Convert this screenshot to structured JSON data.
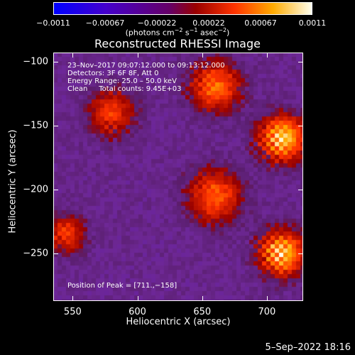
{
  "chart_data": {
    "type": "heatmap",
    "title": "Reconstructed RHESSI Image",
    "xlabel": "Heliocentric X (arcsec)",
    "ylabel": "Heliocentric Y (arcsec)",
    "xlim": [
      535,
      728
    ],
    "ylim": [
      -287,
      -93
    ],
    "x_ticks": [
      550,
      600,
      650,
      700
    ],
    "x_tick_labels": [
      "550",
      "600",
      "650",
      "700"
    ],
    "y_ticks": [
      -100,
      -150,
      -200,
      -250
    ],
    "y_tick_labels": [
      "−100",
      "−150",
      "−200",
      "−250"
    ],
    "colorbar": {
      "range": [
        -0.0011,
        0.0011
      ],
      "tick_labels": [
        "−0.0011",
        "−0.00067",
        "−0.00022",
        "0.00022",
        "0.00067",
        "0.0011"
      ],
      "units_text": "(photons cm",
      "units_exp1": "−2",
      "units_mid": " s",
      "units_exp2": "−1",
      "units_mid2": " asec",
      "units_exp3": "−2",
      "units_end": ")",
      "colors": [
        "#0000ff",
        "#4400cc",
        "#7722aa",
        "#660000",
        "#cc2200",
        "#ff7700",
        "#ffcc33",
        "#ffffdd"
      ]
    },
    "annotations": [
      "23–Nov–2017 09:07:12.000 to 09:13:12.000",
      "Detectors: 3F 6F 8F, Att 0",
      "Energy Range: 25.0 – 50.0 keV",
      "Clean     Total counts: 9.45E+03"
    ],
    "peak_text": "Position of Peak = [711.,−158]",
    "peak": [
      711,
      -158
    ],
    "sources": [
      {
        "x": 712,
        "y": -160,
        "peak": 1.0,
        "sigma": 12
      },
      {
        "x": 712,
        "y": -250,
        "peak": 0.95,
        "sigma": 12
      },
      {
        "x": 660,
        "y": -120,
        "peak": 0.7,
        "sigma": 13
      },
      {
        "x": 660,
        "y": -205,
        "peak": 0.65,
        "sigma": 14
      },
      {
        "x": 580,
        "y": -140,
        "peak": 0.55,
        "sigma": 12
      },
      {
        "x": 545,
        "y": -235,
        "peak": 0.55,
        "sigma": 10
      }
    ]
  },
  "datestamp": "5–Sep–2022 18:16"
}
